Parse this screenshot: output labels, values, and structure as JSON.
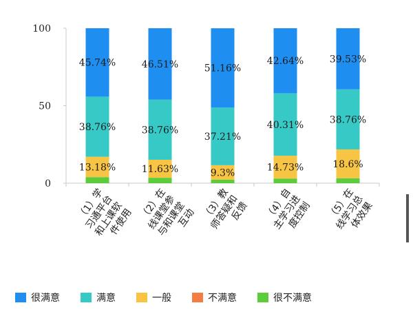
{
  "chart_data": {
    "type": "bar",
    "stacked": true,
    "categories": [
      "（1）学习通平台和上课软件使用",
      "（2）在线课堂参与和课堂互动",
      "（3）教师答疑和反馈",
      "（4）自主学习进度控制",
      "（5）在线学习总体效果"
    ],
    "category_lines": [
      [
        "（1）学",
        "习通平台",
        "和上课软",
        "件使用"
      ],
      [
        "（2）在",
        "线课堂参",
        "与和课堂",
        "互动"
      ],
      [
        "（3）教",
        "师答疑和",
        "反馈"
      ],
      [
        "（4）自",
        "主学习进",
        "度控制"
      ],
      [
        "（5）在",
        "线学习总",
        "体效果"
      ]
    ],
    "series": [
      {
        "name": "很不满意",
        "color": "#5ccb3c",
        "values": [
          3.9,
          3.5,
          2.3,
          3.0,
          3.2
        ],
        "labels": [
          "",
          "",
          "",
          "",
          ""
        ]
      },
      {
        "name": "不满意",
        "color": "#f47c42",
        "values": [
          0,
          0,
          0,
          0,
          0
        ],
        "labels": [
          "",
          "",
          "",
          "",
          ""
        ]
      },
      {
        "name": "一般",
        "color": "#f7c543",
        "values": [
          13.18,
          11.63,
          9.3,
          14.73,
          18.6
        ],
        "labels": [
          "13.18%",
          "11.63%",
          "9.3%",
          "14.73%",
          "18.6%"
        ]
      },
      {
        "name": "满意",
        "color": "#36c9c6",
        "values": [
          38.76,
          38.76,
          37.21,
          40.31,
          38.76
        ],
        "labels": [
          "38.76%",
          "38.76%",
          "37.21%",
          "40.31%",
          "38.76%"
        ]
      },
      {
        "name": "很满意",
        "color": "#1f8ef1",
        "values": [
          45.74,
          46.51,
          51.16,
          42.64,
          39.53
        ],
        "labels": [
          "45.74%",
          "46.51%",
          "51.16%",
          "42.64%",
          "39.53%"
        ]
      }
    ],
    "legend": [
      {
        "name": "很满意",
        "color": "#1f8ef1"
      },
      {
        "name": "满意",
        "color": "#36c9c6"
      },
      {
        "name": "一般",
        "color": "#f7c543"
      },
      {
        "name": "不满意",
        "color": "#f47c42"
      },
      {
        "name": "很不满意",
        "color": "#5ccb3c"
      }
    ],
    "legend_position": "bottom",
    "ylim": [
      0,
      100
    ],
    "yticks": [
      "0",
      "50",
      "100"
    ],
    "grid": false,
    "title": "",
    "xlabel": "",
    "ylabel": ""
  }
}
